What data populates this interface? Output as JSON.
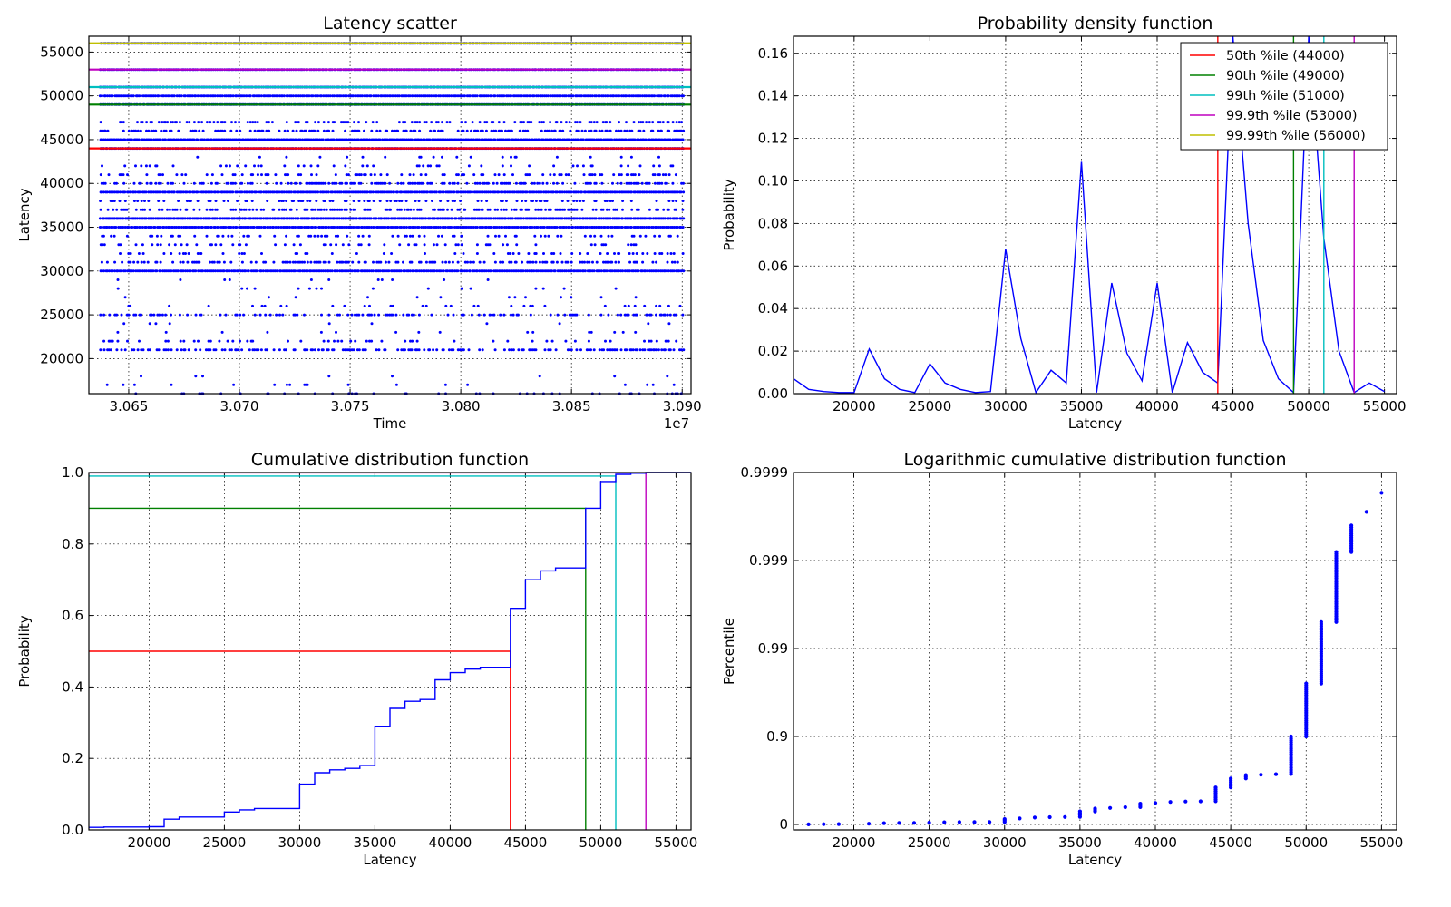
{
  "chart_data": [
    {
      "type": "scatter",
      "title": "Latency scatter",
      "xlabel": "Time",
      "ylabel": "Latency",
      "x_offset_label": "1e7",
      "xlim": [
        3.0632,
        3.0904
      ],
      "ylim": [
        16000,
        56800
      ],
      "xticks": [
        3.065,
        3.07,
        3.075,
        3.08,
        3.085,
        3.09
      ],
      "xtick_labels": [
        "3.065",
        "3.070",
        "3.075",
        "3.080",
        "3.085",
        "3.090"
      ],
      "yticks": [
        20000,
        25000,
        30000,
        35000,
        40000,
        45000,
        50000,
        55000
      ],
      "grid": true,
      "marker_color": "#0000ff",
      "latency_levels": [
        {
          "y": 16000,
          "density": 0.15
        },
        {
          "y": 17000,
          "density": 0.05
        },
        {
          "y": 18000,
          "density": 0.02
        },
        {
          "y": 21000,
          "density": 0.5
        },
        {
          "y": 22000,
          "density": 0.15
        },
        {
          "y": 23000,
          "density": 0.05
        },
        {
          "y": 24000,
          "density": 0.05
        },
        {
          "y": 25000,
          "density": 0.35
        },
        {
          "y": 26000,
          "density": 0.12
        },
        {
          "y": 27000,
          "density": 0.05
        },
        {
          "y": 28000,
          "density": 0.03
        },
        {
          "y": 29000,
          "density": 0.03
        },
        {
          "y": 30000,
          "density": 1.0
        },
        {
          "y": 31000,
          "density": 0.4
        },
        {
          "y": 32000,
          "density": 0.2
        },
        {
          "y": 33000,
          "density": 0.2
        },
        {
          "y": 34000,
          "density": 0.2
        },
        {
          "y": 35000,
          "density": 1.0
        },
        {
          "y": 36000,
          "density": 1.0
        },
        {
          "y": 37000,
          "density": 0.5
        },
        {
          "y": 38000,
          "density": 0.3
        },
        {
          "y": 39000,
          "density": 1.0
        },
        {
          "y": 40000,
          "density": 0.45
        },
        {
          "y": 41000,
          "density": 0.3
        },
        {
          "y": 42000,
          "density": 0.15
        },
        {
          "y": 43000,
          "density": 0.05
        },
        {
          "y": 44000,
          "density": 1.0
        },
        {
          "y": 45000,
          "density": 1.0
        },
        {
          "y": 46000,
          "density": 0.5
        },
        {
          "y": 47000,
          "density": 0.4
        },
        {
          "y": 49000,
          "density": 1.0
        },
        {
          "y": 50000,
          "density": 1.0
        },
        {
          "y": 51000,
          "density": 1.0
        },
        {
          "y": 53000,
          "density": 1.0
        },
        {
          "y": 56000,
          "density": 1.0
        }
      ],
      "percentile_lines": [
        {
          "y": 44000,
          "color": "#ff0000"
        },
        {
          "y": 49000,
          "color": "#008000"
        },
        {
          "y": 51000,
          "color": "#00bfbf"
        },
        {
          "y": 53000,
          "color": "#bf00bf"
        },
        {
          "y": 56000,
          "color": "#bfbf00"
        }
      ]
    },
    {
      "type": "line",
      "title": "Probability density function",
      "xlabel": "Latency",
      "ylabel": "Probability",
      "xlim": [
        16000,
        55800
      ],
      "ylim": [
        0,
        0.168
      ],
      "xticks": [
        20000,
        25000,
        30000,
        35000,
        40000,
        45000,
        50000,
        55000
      ],
      "yticks": [
        0.0,
        0.02,
        0.04,
        0.06,
        0.08,
        0.1,
        0.12,
        0.14,
        0.16
      ],
      "ytick_labels": [
        "0.00",
        "0.02",
        "0.04",
        "0.06",
        "0.08",
        "0.10",
        "0.12",
        "0.14",
        "0.16"
      ],
      "grid": true,
      "legend_position": "top-right",
      "series": [
        {
          "color": "#0000ff",
          "x": [
            16000,
            17000,
            18000,
            19000,
            20000,
            21000,
            22000,
            23000,
            24000,
            25000,
            26000,
            27000,
            28000,
            29000,
            30000,
            31000,
            32000,
            33000,
            34000,
            35000,
            36000,
            37000,
            38000,
            39000,
            40000,
            41000,
            42000,
            43000,
            44000,
            45000,
            46000,
            47000,
            48000,
            49000,
            50000,
            51000,
            52000,
            53000,
            54000,
            55000
          ],
          "y": [
            0.007,
            0.002,
            0.001,
            0.0005,
            0.0005,
            0.021,
            0.007,
            0.002,
            0.0005,
            0.014,
            0.005,
            0.002,
            0.0005,
            0.001,
            0.068,
            0.026,
            0.0005,
            0.011,
            0.005,
            0.109,
            0.0005,
            0.052,
            0.019,
            0.006,
            0.052,
            0.0005,
            0.024,
            0.01,
            0.005,
            0.168,
            0.08,
            0.025,
            0.007,
            0.0005,
            0.168,
            0.073,
            0.02,
            0.0005,
            0.005,
            0.001
          ]
        }
      ],
      "percentiles": [
        {
          "label": "50th %ile    (44000)",
          "value": 44000,
          "color": "#ff0000"
        },
        {
          "label": "90th %ile    (49000)",
          "value": 49000,
          "color": "#008000"
        },
        {
          "label": "99th %ile    (51000)",
          "value": 51000,
          "color": "#00bfbf"
        },
        {
          "label": "99.9th %ile  (53000)",
          "value": 53000,
          "color": "#bf00bf"
        },
        {
          "label": "99.99th %ile (56000)",
          "value": 56000,
          "color": "#bfbf00"
        }
      ]
    },
    {
      "type": "line",
      "title": "Cumulative distribution function",
      "xlabel": "Latency",
      "ylabel": "Probability",
      "xlim": [
        16000,
        56000
      ],
      "ylim": [
        0,
        1
      ],
      "xticks": [
        20000,
        25000,
        30000,
        35000,
        40000,
        45000,
        50000,
        55000
      ],
      "yticks": [
        0.0,
        0.2,
        0.4,
        0.6,
        0.8,
        1.0
      ],
      "ytick_labels": [
        "0.0",
        "0.2",
        "0.4",
        "0.6",
        "0.8",
        "1.0"
      ],
      "grid": true,
      "series": [
        {
          "color": "#0000ff",
          "step": true,
          "x": [
            16000,
            17000,
            20000,
            21000,
            22000,
            25000,
            26000,
            27000,
            30000,
            31000,
            32000,
            33000,
            34000,
            35000,
            36000,
            37000,
            38000,
            39000,
            40000,
            41000,
            42000,
            44000,
            45000,
            46000,
            47000,
            49000,
            50000,
            51000,
            52000,
            53000
          ],
          "y": [
            0.007,
            0.008,
            0.009,
            0.03,
            0.036,
            0.05,
            0.056,
            0.06,
            0.128,
            0.16,
            0.168,
            0.172,
            0.18,
            0.29,
            0.34,
            0.36,
            0.365,
            0.42,
            0.44,
            0.45,
            0.455,
            0.62,
            0.7,
            0.725,
            0.733,
            0.9,
            0.975,
            0.995,
            0.998,
            1.0
          ]
        }
      ],
      "percentiles": [
        {
          "p": 0.5,
          "value": 44000,
          "color": "#ff0000"
        },
        {
          "p": 0.9,
          "value": 49000,
          "color": "#008000"
        },
        {
          "p": 0.99,
          "value": 51000,
          "color": "#00bfbf"
        },
        {
          "p": 0.999,
          "value": 53000,
          "color": "#bf00bf"
        }
      ]
    },
    {
      "type": "scatter",
      "title": "Logarithmic cumulative distribution function",
      "xlabel": "Latency",
      "ylabel": "Percentile",
      "xlim": [
        16000,
        56000
      ],
      "ylim": [
        0,
        0.9999
      ],
      "y_scale": "-log10(1-p)",
      "xticks": [
        20000,
        25000,
        30000,
        35000,
        40000,
        45000,
        50000,
        55000
      ],
      "yticks": [
        0,
        0.9,
        0.99,
        0.999,
        0.9999
      ],
      "ytick_labels": [
        "0",
        "0.9",
        "0.99",
        "0.999",
        "0.9999"
      ],
      "grid": true,
      "marker_color": "#0000ff",
      "points": [
        {
          "x": 17000,
          "p_min": 0.0,
          "p_max": 0.007
        },
        {
          "x": 18000,
          "p_min": 0.007,
          "p_max": 0.008
        },
        {
          "x": 19000,
          "p_min": 0.008,
          "p_max": 0.009
        },
        {
          "x": 21000,
          "p_min": 0.009,
          "p_max": 0.03
        },
        {
          "x": 22000,
          "p_min": 0.03,
          "p_max": 0.036
        },
        {
          "x": 23000,
          "p_min": 0.036,
          "p_max": 0.038
        },
        {
          "x": 24000,
          "p_min": 0.038,
          "p_max": 0.04
        },
        {
          "x": 25000,
          "p_min": 0.04,
          "p_max": 0.054
        },
        {
          "x": 26000,
          "p_min": 0.054,
          "p_max": 0.058
        },
        {
          "x": 27000,
          "p_min": 0.058,
          "p_max": 0.06
        },
        {
          "x": 28000,
          "p_min": 0.06,
          "p_max": 0.061
        },
        {
          "x": 29000,
          "p_min": 0.061,
          "p_max": 0.062
        },
        {
          "x": 30000,
          "p_min": 0.062,
          "p_max": 0.13
        },
        {
          "x": 31000,
          "p_min": 0.13,
          "p_max": 0.16
        },
        {
          "x": 32000,
          "p_min": 0.16,
          "p_max": 0.17
        },
        {
          "x": 33000,
          "p_min": 0.17,
          "p_max": 0.175
        },
        {
          "x": 34000,
          "p_min": 0.175,
          "p_max": 0.18
        },
        {
          "x": 35000,
          "p_min": 0.18,
          "p_max": 0.29
        },
        {
          "x": 36000,
          "p_min": 0.29,
          "p_max": 0.34
        },
        {
          "x": 37000,
          "p_min": 0.34,
          "p_max": 0.36
        },
        {
          "x": 38000,
          "p_min": 0.36,
          "p_max": 0.365
        },
        {
          "x": 39000,
          "p_min": 0.365,
          "p_max": 0.42
        },
        {
          "x": 40000,
          "p_min": 0.42,
          "p_max": 0.44
        },
        {
          "x": 41000,
          "p_min": 0.44,
          "p_max": 0.45
        },
        {
          "x": 42000,
          "p_min": 0.45,
          "p_max": 0.452
        },
        {
          "x": 43000,
          "p_min": 0.452,
          "p_max": 0.455
        },
        {
          "x": 44000,
          "p_min": 0.455,
          "p_max": 0.62
        },
        {
          "x": 45000,
          "p_min": 0.62,
          "p_max": 0.7
        },
        {
          "x": 46000,
          "p_min": 0.7,
          "p_max": 0.725
        },
        {
          "x": 47000,
          "p_min": 0.725,
          "p_max": 0.73
        },
        {
          "x": 48000,
          "p_min": 0.73,
          "p_max": 0.733
        },
        {
          "x": 49000,
          "p_min": 0.733,
          "p_max": 0.9
        },
        {
          "x": 50000,
          "p_min": 0.9,
          "p_max": 0.975
        },
        {
          "x": 51000,
          "p_min": 0.975,
          "p_max": 0.995
        },
        {
          "x": 52000,
          "p_min": 0.995,
          "p_max": 0.9992
        },
        {
          "x": 53000,
          "p_min": 0.9992,
          "p_max": 0.9996
        },
        {
          "x": 54000,
          "p_min": 0.99972,
          "p_max": 0.99972
        },
        {
          "x": 55000,
          "p_min": 0.99983,
          "p_max": 0.99983
        }
      ]
    }
  ]
}
